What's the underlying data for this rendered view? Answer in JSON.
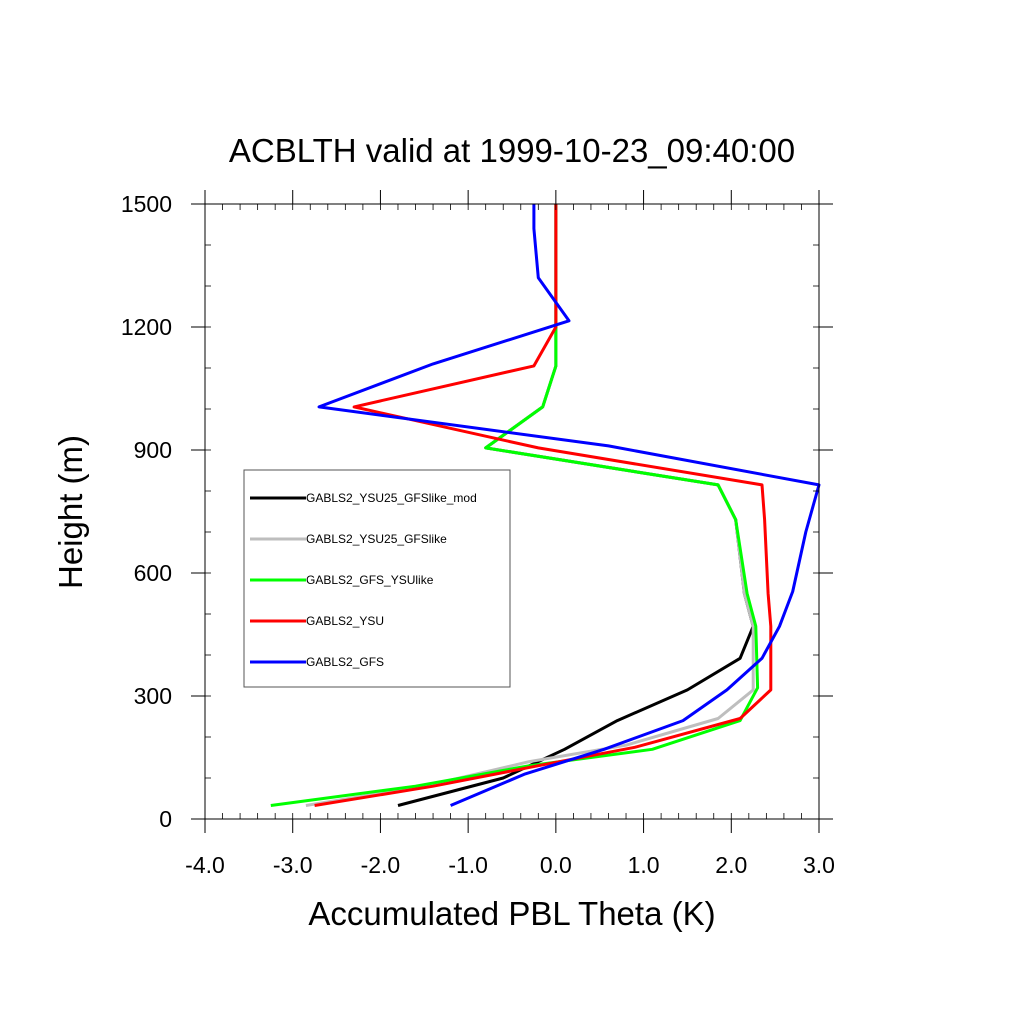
{
  "chart_data": {
    "type": "line",
    "title": "ACBLTH valid at 1999-10-23_09:40:00",
    "xlabel": "Accumulated PBL Theta (K)",
    "ylabel": "Height (m)",
    "xlim": [
      -4.0,
      3.0
    ],
    "ylim": [
      0,
      1500
    ],
    "xticks": [
      -4.0,
      -3.0,
      -2.0,
      -1.0,
      0.0,
      1.0,
      2.0,
      3.0
    ],
    "xtick_labels": [
      "-4.0",
      "-3.0",
      "-2.0",
      "-1.0",
      "0.0",
      "1.0",
      "2.0",
      "3.0"
    ],
    "yticks": [
      0,
      300,
      600,
      900,
      1200,
      1500
    ],
    "ytick_labels": [
      "0",
      "300",
      "600",
      "900",
      "1200",
      "1500"
    ],
    "grid": false,
    "legend_position": "left",
    "series": [
      {
        "name": "GABLS2_YSU25_GFSlike_mod",
        "color": "#000000",
        "points": [
          [
            -1.8,
            33
          ],
          [
            -0.6,
            100
          ],
          [
            0.1,
            170
          ],
          [
            0.7,
            240
          ],
          [
            1.5,
            315
          ],
          [
            2.1,
            392
          ],
          [
            2.25,
            470
          ],
          [
            2.15,
            550
          ],
          [
            2.05,
            730
          ],
          [
            1.85,
            815
          ],
          [
            -0.8,
            905
          ],
          [
            -0.15,
            1005
          ],
          [
            0.0,
            1105
          ],
          [
            0.0,
            1200
          ],
          [
            0.0,
            1500
          ]
        ]
      },
      {
        "name": "GABLS2_YSU25_GFSlike",
        "color": "#bebebe",
        "points": [
          [
            -2.85,
            33
          ],
          [
            -1.5,
            80
          ],
          [
            -0.3,
            140
          ],
          [
            0.8,
            180
          ],
          [
            1.85,
            245
          ],
          [
            2.25,
            315
          ],
          [
            2.25,
            470
          ],
          [
            2.15,
            550
          ],
          [
            2.05,
            730
          ],
          [
            1.85,
            815
          ],
          [
            -0.8,
            905
          ],
          [
            -0.15,
            1005
          ],
          [
            0.0,
            1105
          ],
          [
            0.0,
            1200
          ],
          [
            0.0,
            1500
          ]
        ]
      },
      {
        "name": "GABLS2_GFS_YSUlike",
        "color": "#00ff00",
        "points": [
          [
            -3.25,
            33
          ],
          [
            -1.6,
            80
          ],
          [
            -0.3,
            130
          ],
          [
            1.1,
            170
          ],
          [
            2.1,
            240
          ],
          [
            2.3,
            320
          ],
          [
            2.28,
            470
          ],
          [
            2.18,
            550
          ],
          [
            2.05,
            730
          ],
          [
            1.85,
            815
          ],
          [
            -0.8,
            905
          ],
          [
            -0.15,
            1005
          ],
          [
            0.0,
            1105
          ],
          [
            0.0,
            1200
          ],
          [
            0.0,
            1500
          ]
        ]
      },
      {
        "name": "GABLS2_YSU",
        "color": "#ff0000",
        "points": [
          [
            -2.75,
            33
          ],
          [
            -1.4,
            80
          ],
          [
            -0.2,
            130
          ],
          [
            0.9,
            175
          ],
          [
            2.1,
            245
          ],
          [
            2.45,
            315
          ],
          [
            2.45,
            470
          ],
          [
            2.42,
            550
          ],
          [
            2.38,
            730
          ],
          [
            2.35,
            815
          ],
          [
            -0.2,
            905
          ],
          [
            -2.3,
            1005
          ],
          [
            -0.25,
            1105
          ],
          [
            0.0,
            1200
          ],
          [
            0.0,
            1500
          ]
        ]
      },
      {
        "name": "GABLS2_GFS",
        "color": "#0000ff",
        "points": [
          [
            -1.2,
            33
          ],
          [
            -0.35,
            110
          ],
          [
            0.55,
            170
          ],
          [
            1.45,
            240
          ],
          [
            1.95,
            315
          ],
          [
            2.35,
            392
          ],
          [
            2.55,
            470
          ],
          [
            2.7,
            555
          ],
          [
            2.85,
            700
          ],
          [
            3.0,
            815
          ],
          [
            0.6,
            910
          ],
          [
            -2.7,
            1005
          ],
          [
            -1.4,
            1110
          ],
          [
            0.15,
            1215
          ],
          [
            -0.2,
            1320
          ],
          [
            -0.25,
            1440
          ],
          [
            -0.25,
            1500
          ]
        ]
      }
    ]
  }
}
